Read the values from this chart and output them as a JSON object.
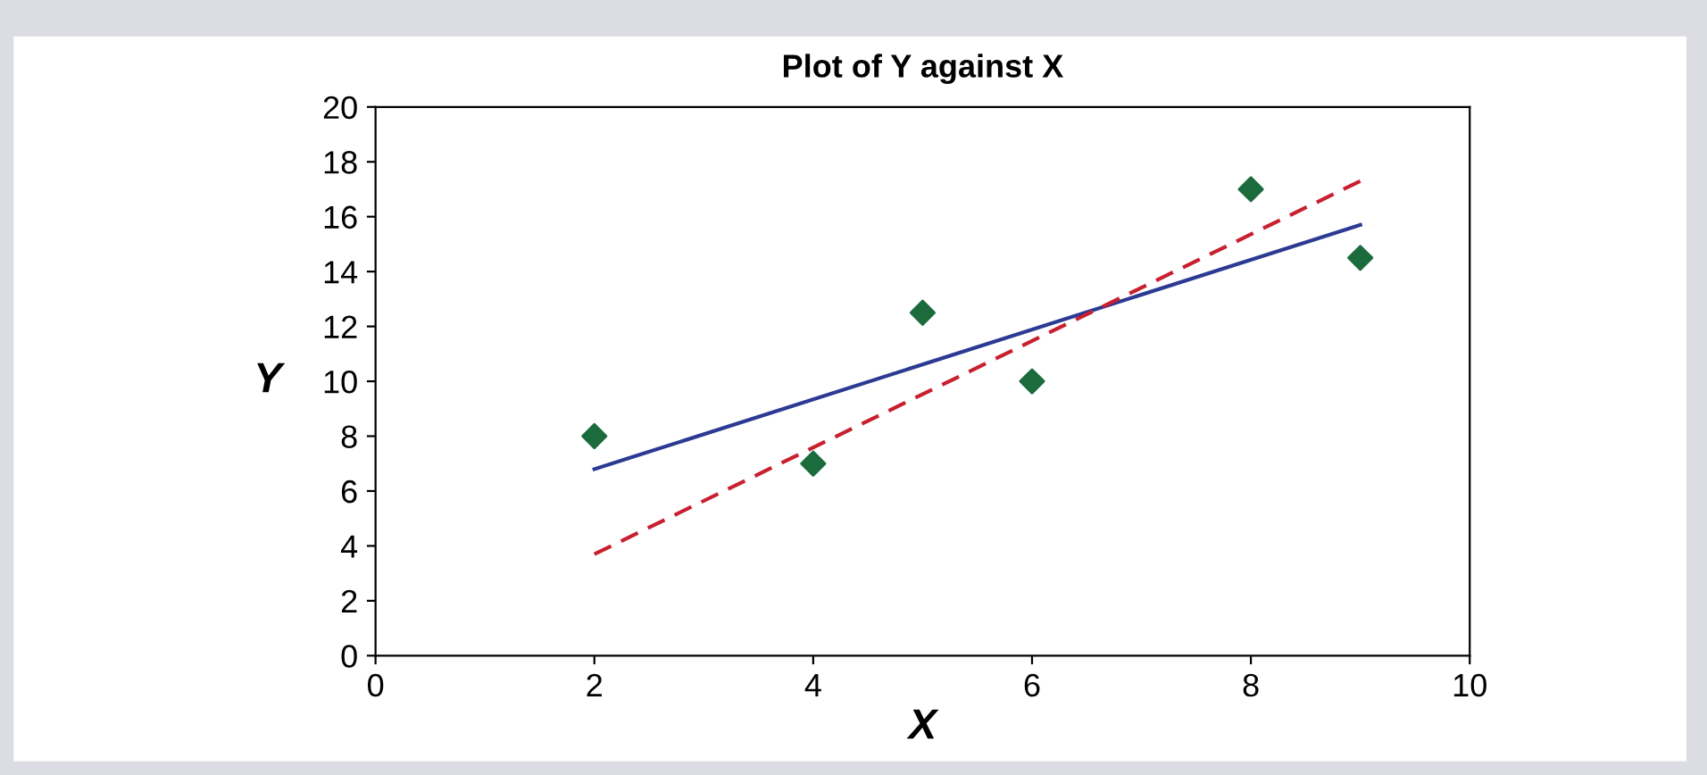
{
  "chart_data": {
    "type": "scatter",
    "title": "Plot of Y against X",
    "xlabel": "X",
    "ylabel": "Y",
    "xlim": [
      0,
      10
    ],
    "xticks": [
      0,
      2,
      4,
      6,
      8,
      10
    ],
    "ylim": [
      0,
      20
    ],
    "yticks": [
      0,
      2,
      4,
      6,
      8,
      10,
      12,
      14,
      16,
      18,
      20
    ],
    "grid": false,
    "marker": "diamond",
    "series": [
      {
        "color": "#1b6b3c",
        "x": [
          2,
          4,
          5,
          6,
          8,
          9
        ],
        "values": [
          8,
          7,
          12.5,
          10,
          17,
          14.5
        ]
      },
      {
        "type": "line",
        "color": "#2b3a92",
        "line_style": "solid",
        "marker": "none",
        "x": [
          2,
          9
        ],
        "values": [
          6.8,
          15.7
        ]
      },
      {
        "type": "line",
        "color": "#c8202f",
        "line_style": "dashed",
        "marker": "none",
        "x": [
          2,
          9
        ],
        "values": [
          3.7,
          17.3
        ]
      }
    ]
  }
}
